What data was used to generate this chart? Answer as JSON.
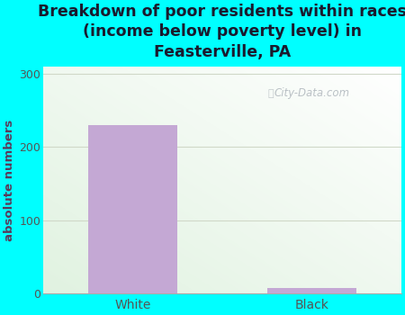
{
  "title": "Breakdown of poor residents within races\n(income below poverty level) in\nFeasterville, PA",
  "categories": [
    "White",
    "Black"
  ],
  "values": [
    230,
    8
  ],
  "bar_color": "#c4a8d4",
  "ylabel": "absolute numbers",
  "ylim": [
    0,
    310
  ],
  "yticks": [
    0,
    100,
    200,
    300
  ],
  "title_fontsize": 12.5,
  "title_color": "#1a1a2e",
  "background_outer": "#00ffff",
  "watermark": "City-Data.com",
  "bar_width": 0.5,
  "plot_bg_colors": [
    "#f5f9ee",
    "#e8f5e0",
    "#f0f8f0",
    "#ffffff"
  ],
  "ylabel_color": "#5a3a5a",
  "tick_color": "#555555",
  "grid_color": "#d0d8c8"
}
